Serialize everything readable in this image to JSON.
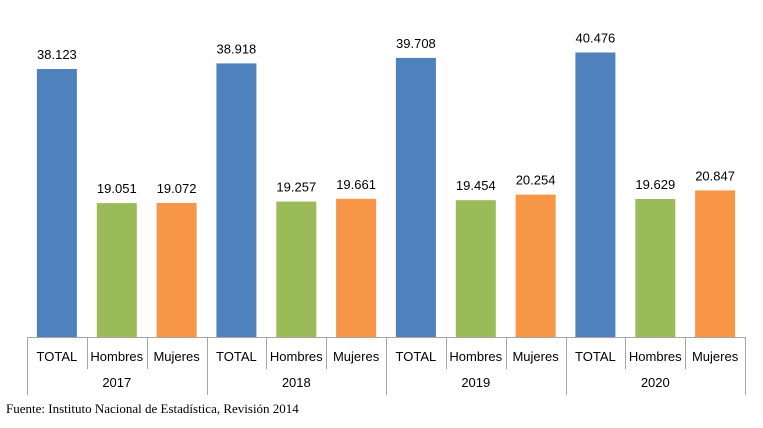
{
  "colors": {
    "TOTAL": "#4f81bd",
    "Hombres": "#9bbb59",
    "Mujeres": "#f79646",
    "axis": "#a6a6a6"
  },
  "chart_data": {
    "type": "bar",
    "ylim": [
      0,
      45000
    ],
    "grid": false,
    "legend": "none",
    "groups": [
      {
        "year": "2017",
        "bars": [
          {
            "category": "TOTAL",
            "value": 38123,
            "label": "38.123"
          },
          {
            "category": "Hombres",
            "value": 19051,
            "label": "19.051"
          },
          {
            "category": "Mujeres",
            "value": 19072,
            "label": "19.072"
          }
        ]
      },
      {
        "year": "2018",
        "bars": [
          {
            "category": "TOTAL",
            "value": 38918,
            "label": "38.918"
          },
          {
            "category": "Hombres",
            "value": 19257,
            "label": "19.257"
          },
          {
            "category": "Mujeres",
            "value": 19661,
            "label": "19.661"
          }
        ]
      },
      {
        "year": "2019",
        "bars": [
          {
            "category": "TOTAL",
            "value": 39708,
            "label": "39.708"
          },
          {
            "category": "Hombres",
            "value": 19454,
            "label": "19.454"
          },
          {
            "category": "Mujeres",
            "value": 20254,
            "label": "20.254"
          }
        ]
      },
      {
        "year": "2020",
        "bars": [
          {
            "category": "TOTAL",
            "value": 40476,
            "label": "40.476"
          },
          {
            "category": "Hombres",
            "value": 19629,
            "label": "19.629"
          },
          {
            "category": "Mujeres",
            "value": 20847,
            "label": "20.847"
          }
        ]
      }
    ]
  },
  "source": "Fuente: Instituto Nacional de Estadística, Revisión 2014"
}
